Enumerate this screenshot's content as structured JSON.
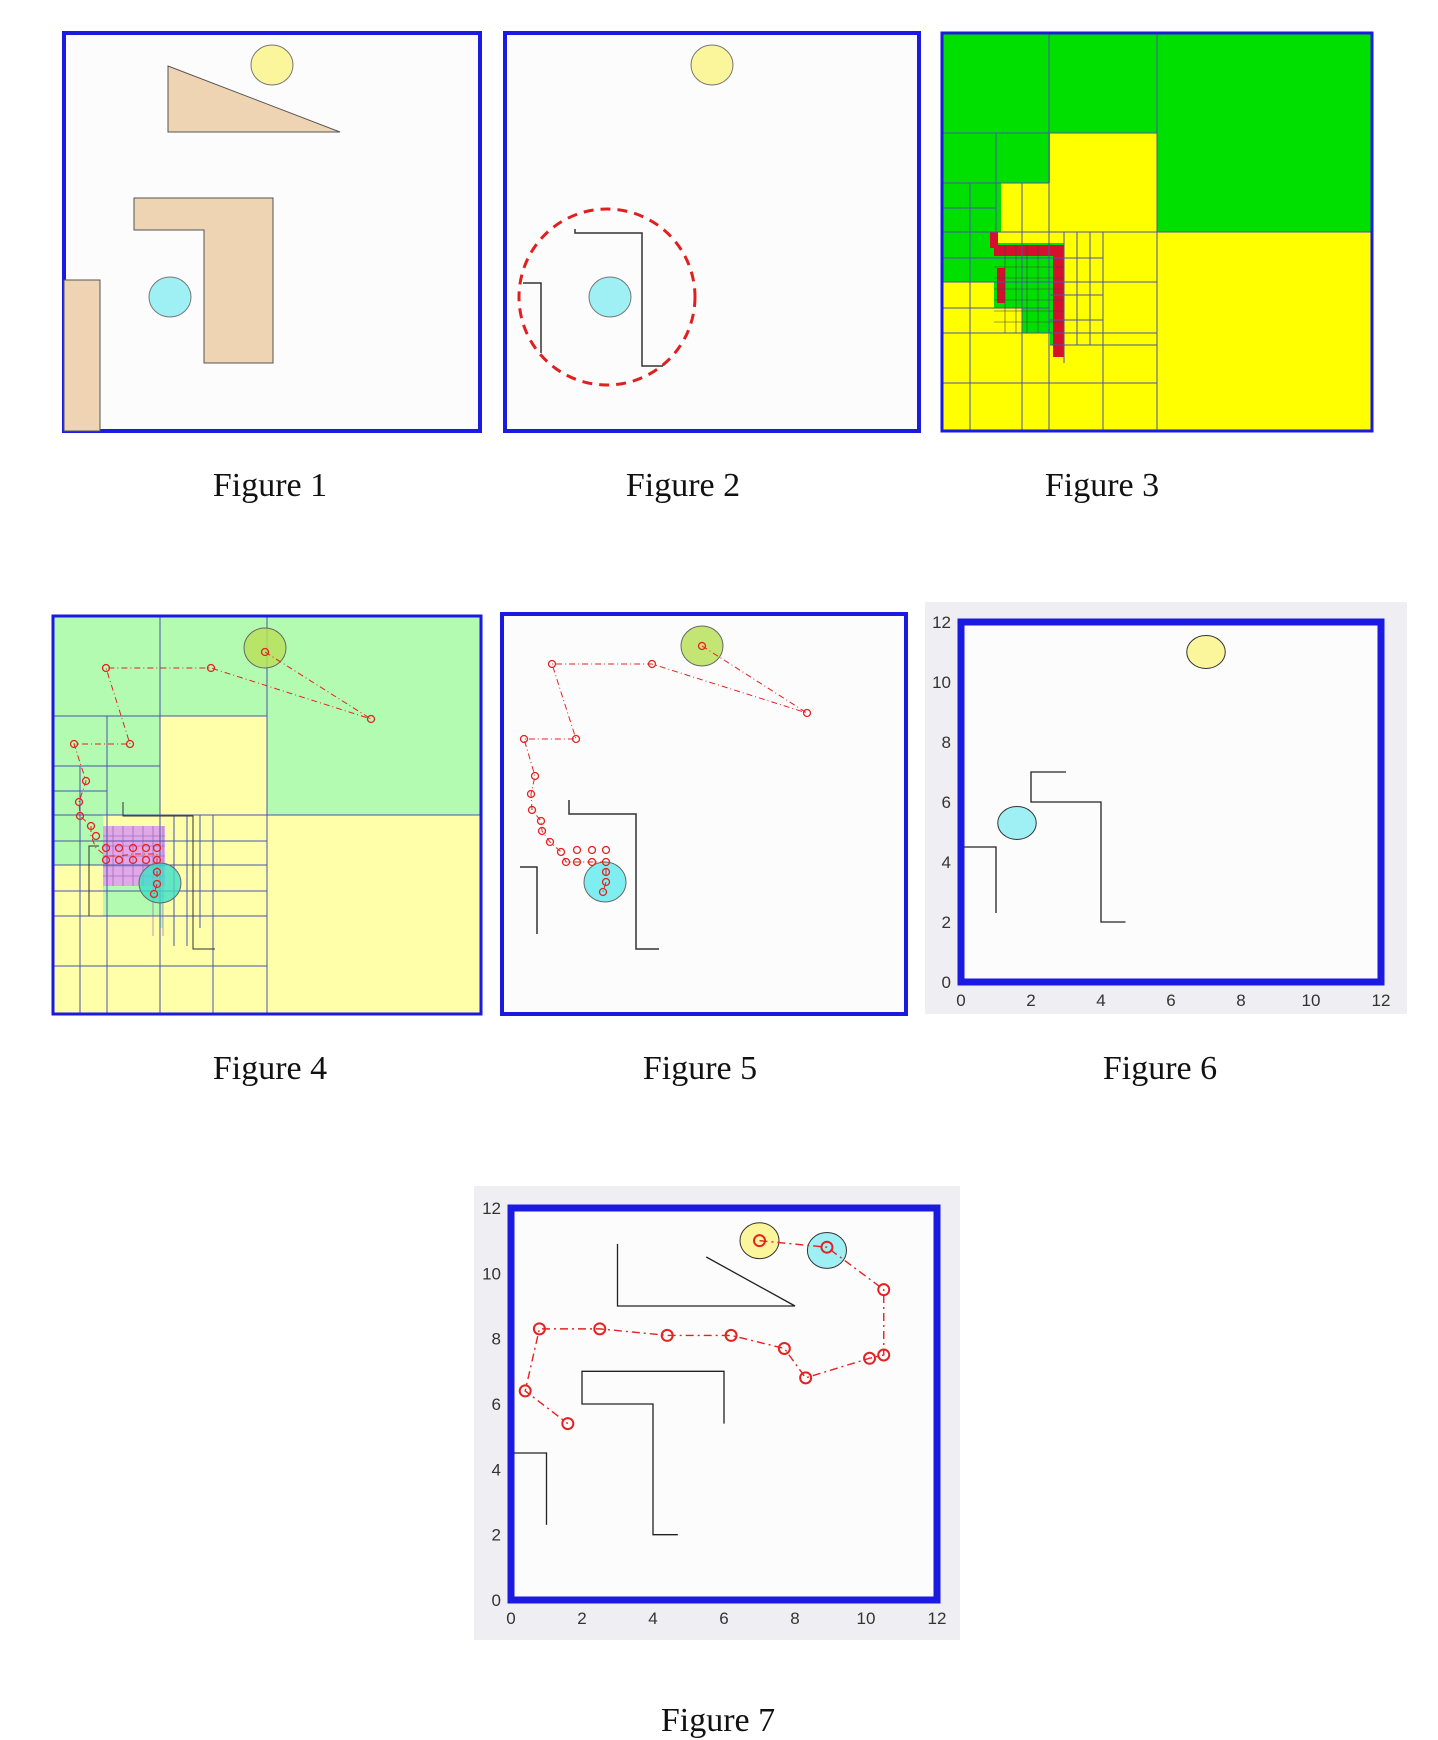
{
  "colors": {
    "frame": "#1a1ae0",
    "obstacle_fill": "#efd4b3",
    "goal": "#fbf59b",
    "start": "#9ff0f5",
    "free_cell": "#00e000",
    "mixed_cell": "#ffff00",
    "blocked_cell": "#d4102c",
    "grid_line": "#4a56a8",
    "path": "#e52222",
    "plot_bg": "#efeff3",
    "sensor_range": "#e02020"
  },
  "figures": [
    {
      "id": "fig1",
      "caption": "Figure 1"
    },
    {
      "id": "fig2",
      "caption": "Figure 2"
    },
    {
      "id": "fig3",
      "caption": "Figure 3"
    },
    {
      "id": "fig4",
      "caption": "Figure 4"
    },
    {
      "id": "fig5",
      "caption": "Figure 5"
    },
    {
      "id": "fig6",
      "caption": "Figure 6"
    },
    {
      "id": "fig7",
      "caption": "Figure 7"
    }
  ],
  "axes": {
    "ticks": [
      "0",
      "2",
      "4",
      "6",
      "8",
      "10",
      "12"
    ],
    "xlim": [
      0,
      12
    ],
    "ylim": [
      0,
      12
    ]
  },
  "chart_data": [
    {
      "type": "scatter",
      "figure": "Figure 6",
      "xlim": [
        0,
        12
      ],
      "ylim": [
        0,
        12
      ],
      "xticks": [
        0,
        2,
        4,
        6,
        8,
        10,
        12
      ],
      "yticks": [
        0,
        2,
        4,
        6,
        8,
        10,
        12
      ],
      "start": [
        1.6,
        5.3
      ],
      "goal": [
        7.0,
        11.0
      ],
      "walls": [
        [
          [
            0,
            4.5
          ],
          [
            1,
            4.5
          ],
          [
            1,
            2.3
          ]
        ],
        [
          [
            3,
            7
          ],
          [
            2,
            7
          ],
          [
            2,
            6
          ],
          [
            4,
            6
          ],
          [
            4,
            2
          ],
          [
            4.7,
            2
          ]
        ]
      ]
    },
    {
      "type": "line",
      "figure": "Figure 7",
      "xlim": [
        0,
        12
      ],
      "ylim": [
        0,
        12
      ],
      "xticks": [
        0,
        2,
        4,
        6,
        8,
        10,
        12
      ],
      "yticks": [
        0,
        2,
        4,
        6,
        8,
        10,
        12
      ],
      "start": [
        8.9,
        10.7
      ],
      "goal": [
        7.0,
        11.0
      ],
      "path": [
        [
          7.0,
          11.0
        ],
        [
          8.9,
          10.8
        ],
        [
          10.5,
          9.5
        ],
        [
          10.5,
          7.5
        ],
        [
          10.1,
          7.4
        ],
        [
          8.3,
          6.8
        ],
        [
          7.7,
          7.7
        ],
        [
          6.2,
          8.1
        ],
        [
          4.4,
          8.1
        ],
        [
          2.5,
          8.3
        ],
        [
          0.8,
          8.3
        ],
        [
          0.4,
          6.4
        ],
        [
          1.6,
          5.4
        ]
      ],
      "walls": [
        [
          [
            0,
            4.5
          ],
          [
            1,
            4.5
          ],
          [
            1,
            2.3
          ]
        ],
        [
          [
            6,
            5.4
          ],
          [
            6,
            7
          ],
          [
            2,
            7
          ],
          [
            2,
            6
          ],
          [
            4,
            6
          ],
          [
            4,
            2
          ],
          [
            4.7,
            2
          ]
        ],
        [
          [
            3,
            10.9
          ],
          [
            3,
            9
          ],
          [
            8,
            9
          ],
          [
            5.5,
            10.5
          ]
        ]
      ]
    }
  ]
}
